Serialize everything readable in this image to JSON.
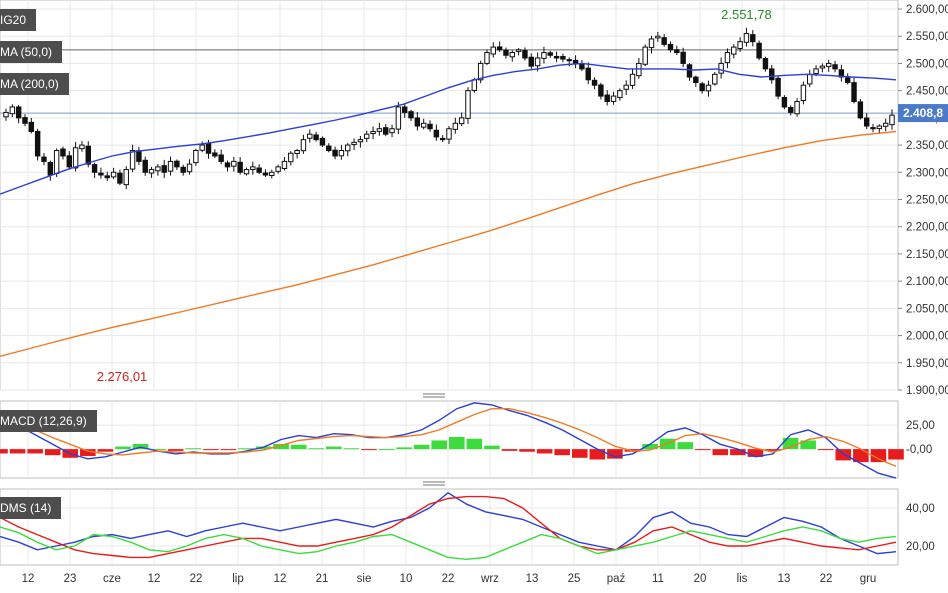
{
  "chart_data": [
    {
      "type": "candlestick",
      "instrument_label": "IG20",
      "overlays": [
        {
          "name": "MA (50,0)",
          "color": "#2b3fd6"
        },
        {
          "name": "MA (200,0)",
          "color": "#f07a24"
        }
      ],
      "ylim": [
        1900,
        2600
      ],
      "y_ticks": [
        "2.600,00",
        "2.550,00",
        "2.500,00",
        "2.450,00",
        "2.400,00",
        "2.350,00",
        "2.300,00",
        "2.250,00",
        "2.200,00",
        "2.150,00",
        "2.100,00",
        "2.050,00",
        "2.000,00",
        "1.950,00",
        "1.900,00"
      ],
      "last_price_label": "2.408,8",
      "last_price": 2408.8,
      "high_label": "2.551,78",
      "high_value": 2551.78,
      "low_label": "2.276,01",
      "low_value": 2276.01,
      "horizontal_lines": [
        2525,
        2408.8
      ],
      "x_ticks": [
        "12",
        "23",
        "cze",
        "12",
        "22",
        "lip",
        "12",
        "21",
        "sie",
        "10",
        "22",
        "wrz",
        "13",
        "25",
        "paź",
        "11",
        "20",
        "lis",
        "13",
        "22",
        "gru"
      ],
      "closes": [
        2410,
        2420,
        2400,
        2390,
        2375,
        2330,
        2320,
        2295,
        2340,
        2330,
        2310,
        2345,
        2350,
        2315,
        2300,
        2295,
        2290,
        2300,
        2280,
        2305,
        2340,
        2320,
        2300,
        2305,
        2310,
        2300,
        2320,
        2310,
        2300,
        2315,
        2340,
        2350,
        2335,
        2330,
        2320,
        2310,
        2320,
        2300,
        2305,
        2310,
        2300,
        2295,
        2300,
        2310,
        2320,
        2335,
        2340,
        2360,
        2370,
        2360,
        2350,
        2340,
        2330,
        2340,
        2350,
        2355,
        2360,
        2370,
        2375,
        2380,
        2370,
        2380,
        2420,
        2410,
        2400,
        2385,
        2390,
        2380,
        2365,
        2360,
        2380,
        2390,
        2400,
        2450,
        2470,
        2500,
        2520,
        2530,
        2525,
        2515,
        2520,
        2525,
        2510,
        2495,
        2510,
        2520,
        2515,
        2510,
        2508,
        2505,
        2500,
        2490,
        2470,
        2460,
        2440,
        2430,
        2440,
        2450,
        2460,
        2480,
        2500,
        2530,
        2545,
        2550,
        2535,
        2525,
        2520,
        2500,
        2475,
        2465,
        2450,
        2460,
        2480,
        2500,
        2520,
        2530,
        2540,
        2555,
        2540,
        2510,
        2490,
        2470,
        2440,
        2420,
        2410,
        2430,
        2460,
        2480,
        2490,
        2495,
        2500,
        2490,
        2475,
        2465,
        2430,
        2400,
        2385,
        2380,
        2385,
        2390,
        2405
      ],
      "ma50": [
        2260,
        2275,
        2290,
        2305,
        2318,
        2330,
        2338,
        2343,
        2348,
        2352,
        2358,
        2365,
        2372,
        2380,
        2388,
        2396,
        2405,
        2415,
        2425,
        2440,
        2455,
        2468,
        2478,
        2485,
        2490,
        2497,
        2500,
        2495,
        2490,
        2490,
        2490,
        2488,
        2490,
        2480,
        2475,
        2478,
        2480,
        2478,
        2475,
        2473,
        2470
      ],
      "ma200": [
        1962,
        1980,
        1998,
        2015,
        2030,
        2046,
        2062,
        2078,
        2094,
        2112,
        2130,
        2150,
        2170,
        2190,
        2212,
        2235,
        2258,
        2280,
        2298,
        2314,
        2330,
        2345,
        2358,
        2368,
        2375
      ]
    },
    {
      "type": "line",
      "indicator_label": "MACD (12,26,9)",
      "ylim": [
        -30,
        50
      ],
      "y_ticks": [
        "25,00",
        "-0,00"
      ],
      "macd": [
        30,
        25,
        15,
        5,
        -5,
        -10,
        -8,
        -3,
        2,
        -2,
        -5,
        -3,
        -5,
        -5,
        -2,
        2,
        10,
        14,
        12,
        16,
        15,
        12,
        12,
        15,
        20,
        30,
        42,
        48,
        46,
        40,
        35,
        28,
        20,
        10,
        0,
        -8,
        -5,
        5,
        18,
        22,
        15,
        5,
        0,
        -8,
        -5,
        15,
        20,
        12,
        -5,
        -15,
        -25,
        -30
      ],
      "signal": [
        35,
        30,
        20,
        12,
        5,
        -2,
        -5,
        -6,
        -4,
        -2,
        -3,
        -4,
        -4,
        -4,
        -3,
        -1,
        4,
        9,
        11,
        13,
        14,
        13,
        12,
        13,
        15,
        20,
        28,
        36,
        42,
        42,
        38,
        33,
        27,
        20,
        12,
        3,
        -2,
        -1,
        6,
        14,
        16,
        12,
        7,
        1,
        -3,
        2,
        10,
        13,
        8,
        0,
        -10,
        -18
      ]
    },
    {
      "type": "line",
      "indicator_label": "DMS (14)",
      "ylim": [
        10,
        50
      ],
      "y_ticks": [
        "40,00",
        "20,00"
      ],
      "dmi_plus": [
        25,
        22,
        18,
        20,
        22,
        25,
        26,
        24,
        26,
        28,
        25,
        28,
        30,
        32,
        30,
        28,
        30,
        32,
        34,
        32,
        30,
        33,
        35,
        40,
        48,
        42,
        38,
        36,
        34,
        30,
        26,
        22,
        20,
        18,
        25,
        35,
        38,
        32,
        30,
        26,
        25,
        30,
        35,
        33,
        30,
        24,
        20,
        16,
        17
      ],
      "dmi_minus": [
        35,
        30,
        26,
        22,
        18,
        16,
        15,
        14,
        14,
        16,
        18,
        20,
        22,
        24,
        24,
        22,
        20,
        20,
        22,
        24,
        26,
        30,
        36,
        42,
        45,
        46,
        46,
        45,
        40,
        32,
        24,
        20,
        18,
        18,
        22,
        28,
        30,
        26,
        22,
        20,
        20,
        22,
        24,
        22,
        20,
        19,
        18,
        20,
        22
      ],
      "adx": [
        30,
        27,
        22,
        18,
        20,
        26,
        25,
        22,
        18,
        17,
        20,
        24,
        26,
        24,
        20,
        18,
        16,
        17,
        20,
        22,
        25,
        26,
        22,
        18,
        14,
        13,
        14,
        18,
        22,
        26,
        24,
        20,
        16,
        18,
        20,
        22,
        25,
        28,
        26,
        24,
        22,
        25,
        28,
        30,
        28,
        24,
        22,
        24,
        25
      ]
    }
  ]
}
